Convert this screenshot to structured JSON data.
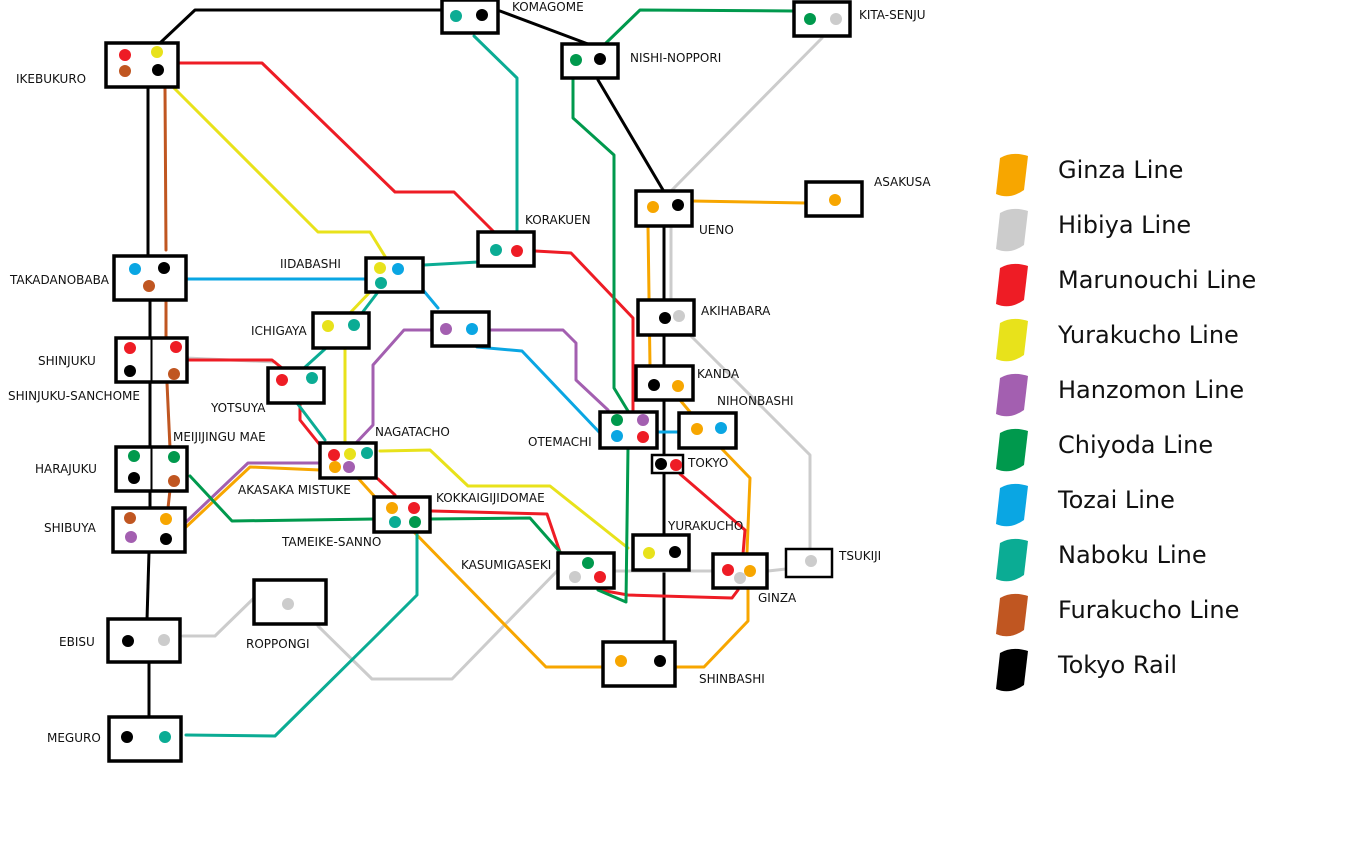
{
  "colors": {
    "ginza": "#f7a600",
    "hibiya": "#cccccc",
    "marunouchi": "#ee1c25",
    "yurakucho": "#e8e21b",
    "hanzomon": "#a35fb0",
    "chiyoda": "#00994d",
    "tozai": "#0aa6e3",
    "naboku": "#0bac94",
    "furakucho": "#c05621",
    "tokyo": "#000000"
  },
  "stations": [
    {
      "id": "ikebukuro",
      "name": "IKEBUKURO"
    },
    {
      "id": "komagome",
      "name": "KOMAGOME"
    },
    {
      "id": "nishi-nippori",
      "name": "NISHI-NOPPORI"
    },
    {
      "id": "kita-senju",
      "name": "KITA-SENJU"
    },
    {
      "id": "korakuen",
      "name": "KORAKUEN"
    },
    {
      "id": "ueno",
      "name": "UENO"
    },
    {
      "id": "asakusa",
      "name": "ASAKUSA"
    },
    {
      "id": "takadanobaba",
      "name": "TAKADANOBABA"
    },
    {
      "id": "iidabashi",
      "name": "IIDABASHI"
    },
    {
      "id": "ichigaya",
      "name": "ICHIGAYA"
    },
    {
      "id": "kudanshita",
      "name": ""
    },
    {
      "id": "akihabara",
      "name": "AKIHABARA"
    },
    {
      "id": "shinjuku",
      "name": "SHINJUKU"
    },
    {
      "id": "shinjuku-sanchome",
      "name": "SHINJUKU-SANCHOME"
    },
    {
      "id": "yotsuya",
      "name": "YOTSUYA"
    },
    {
      "id": "kanda",
      "name": "KANDA"
    },
    {
      "id": "nihonbashi",
      "name": "NIHONBASHI"
    },
    {
      "id": "meijijingu-mae",
      "name": "MEIJIJINGU MAE"
    },
    {
      "id": "nagatacho",
      "name": "NAGATACHO"
    },
    {
      "id": "otemachi",
      "name": "OTEMACHI"
    },
    {
      "id": "tokyo",
      "name": "TOKYO"
    },
    {
      "id": "harajuku",
      "name": "HARAJUKU"
    },
    {
      "id": "akasaka-mitsuke",
      "name": "AKASAKA MISTUKE"
    },
    {
      "id": "kokkaigijidomae",
      "name": "KOKKAIGIJIDOMAE"
    },
    {
      "id": "shibuya",
      "name": "SHIBUYA"
    },
    {
      "id": "tameike-sanno",
      "name": "TAMEIKE-SANNO"
    },
    {
      "id": "yurakucho",
      "name": "YURAKUCHO"
    },
    {
      "id": "kasumigaseki",
      "name": "KASUMIGASEKI"
    },
    {
      "id": "tsukiji",
      "name": "TSUKIJI"
    },
    {
      "id": "ginza",
      "name": "GINZA"
    },
    {
      "id": "ebisu",
      "name": "EBISU"
    },
    {
      "id": "roppongi",
      "name": "ROPPONGI"
    },
    {
      "id": "shinbashi",
      "name": "SHINBASHI"
    },
    {
      "id": "meguro",
      "name": "MEGURO"
    }
  ],
  "legend": [
    {
      "key": "ginza",
      "label": "Ginza Line"
    },
    {
      "key": "hibiya",
      "label": "Hibiya Line"
    },
    {
      "key": "marunouchi",
      "label": "Marunouchi Line"
    },
    {
      "key": "yurakucho",
      "label": "Yurakucho Line"
    },
    {
      "key": "hanzomon",
      "label": "Hanzomon Line"
    },
    {
      "key": "chiyoda",
      "label": "Chiyoda Line"
    },
    {
      "key": "tozai",
      "label": "Tozai Line"
    },
    {
      "key": "naboku",
      "label": "Naboku Line"
    },
    {
      "key": "furakucho",
      "label": "Furakucho Line"
    },
    {
      "key": "tokyo",
      "label": "Tokyo Rail"
    }
  ]
}
